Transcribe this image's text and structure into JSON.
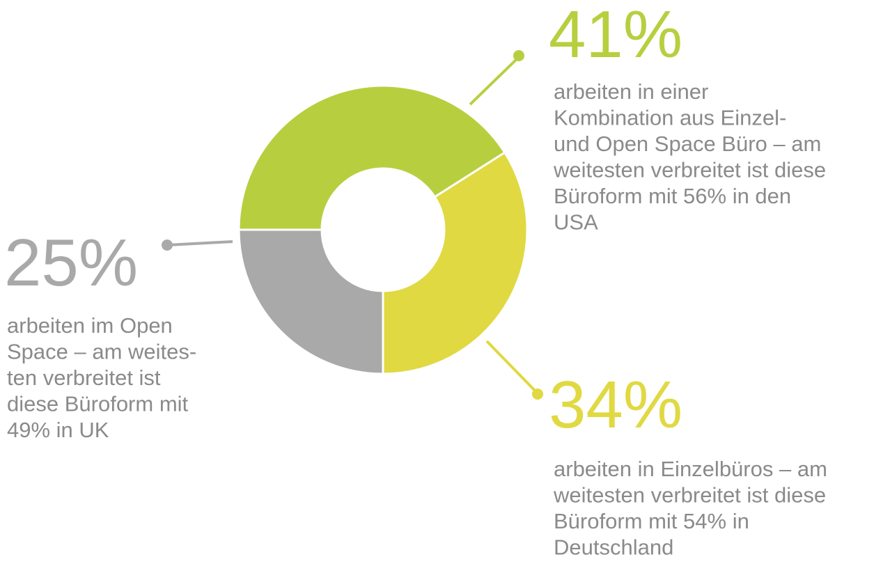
{
  "chart_data": {
    "type": "pie",
    "donut": true,
    "start_angle": 270,
    "values": [
      41,
      34,
      25
    ],
    "value_labels": [
      "41%",
      "34%",
      "25%"
    ],
    "colors": [
      "#b7cf3f",
      "#e0d942",
      "#a9a9a9"
    ],
    "descriptions": [
      [
        "arbeiten in einer",
        "Kombination aus Einzel-",
        "und Open Space Büro – am",
        "weitesten verbreitet ist diese",
        "Büroform mit 56% in den",
        "USA"
      ],
      [
        "arbeiten in Einzelbüros – am",
        "weitesten verbreitet ist diese",
        "Büroform mit 54% in",
        "Deutschland"
      ],
      [
        "arbeiten im Open",
        "Space – am weites-",
        "ten verbreitet ist",
        "diese Büroform mit",
        "49% in UK"
      ]
    ]
  }
}
